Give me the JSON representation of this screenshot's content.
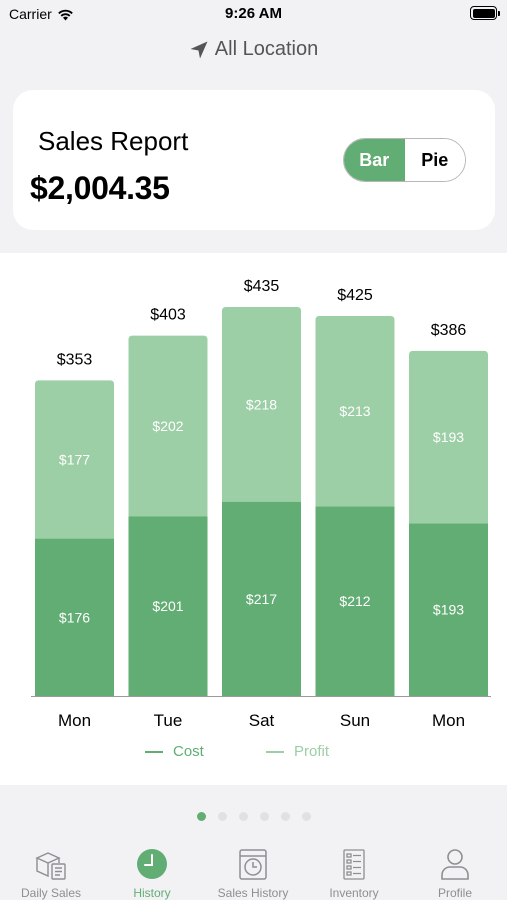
{
  "status_bar": {
    "carrier": "Carrier",
    "time": "9:26 AM"
  },
  "location": {
    "label": "All Location",
    "icon": "location-arrow-icon"
  },
  "summary": {
    "title": "Sales Report",
    "total": "$2,004.35",
    "toggle": {
      "options": [
        "Bar",
        "Pie"
      ],
      "selected": "Bar"
    }
  },
  "colors": {
    "accent": "#62ad74",
    "cost": "#62ad74",
    "profit": "#9ccfa6"
  },
  "chart_data": {
    "type": "bar",
    "stacked": true,
    "categories": [
      "Mon",
      "Tue",
      "Sat",
      "Sun",
      "Mon"
    ],
    "series": [
      {
        "name": "Cost",
        "values": [
          176,
          201,
          217,
          212,
          193
        ],
        "labels": [
          "$176",
          "$201",
          "$217",
          "$212",
          "$193"
        ]
      },
      {
        "name": "Profit",
        "values": [
          177,
          202,
          218,
          213,
          193
        ],
        "labels": [
          "$177",
          "$202",
          "$218",
          "$213",
          "$193"
        ]
      }
    ],
    "totals": [
      "$353",
      "$403",
      "$435",
      "$425",
      "$386"
    ],
    "ylim": [
      0,
      435
    ],
    "legend": "bottom",
    "grid": false
  },
  "pager": {
    "count": 6,
    "active": 0
  },
  "tabs": [
    {
      "label": "Daily Sales",
      "icon": "box-receipt-icon",
      "active": false
    },
    {
      "label": "History",
      "icon": "clock-icon",
      "active": true
    },
    {
      "label": "Sales History",
      "icon": "calendar-clock-icon",
      "active": false
    },
    {
      "label": "Inventory",
      "icon": "checklist-icon",
      "active": false
    },
    {
      "label": "Profile",
      "icon": "person-icon",
      "active": false
    }
  ]
}
